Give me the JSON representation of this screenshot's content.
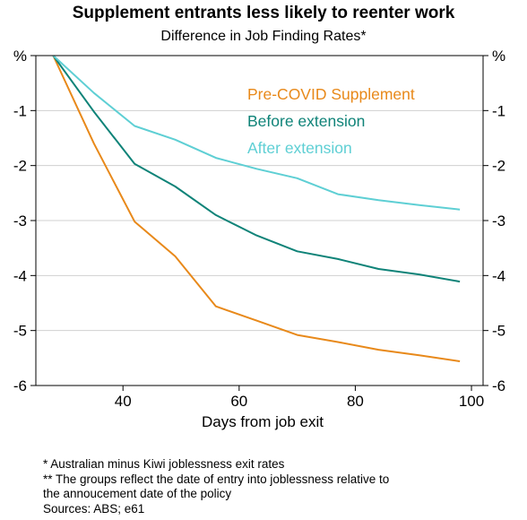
{
  "chart_data": {
    "type": "line",
    "title": "Supplement entrants less likely to reenter work",
    "subtitle": "Difference in Job Finding Rates*",
    "xlabel": "Days from job exit",
    "ylabel": "%",
    "ylabel_right": "%",
    "xlim": [
      25,
      102
    ],
    "ylim": [
      -6,
      0
    ],
    "xticks": [
      40,
      60,
      80,
      100
    ],
    "yticks": [
      0,
      -1,
      -2,
      -3,
      -4,
      -5,
      -6
    ],
    "ytick_labels": [
      "%",
      "-1",
      "-2",
      "-3",
      "-4",
      "-5",
      "-6"
    ],
    "grid": true,
    "legend_position": "top-right",
    "series": [
      {
        "name": "Pre-COVID Supplement",
        "color": "#E8891A",
        "x": [
          28,
          35,
          42,
          49,
          56,
          63,
          70,
          77,
          84,
          91,
          98
        ],
        "y": [
          0,
          -1.6,
          -3.02,
          -3.65,
          -4.56,
          -4.82,
          -5.08,
          -5.21,
          -5.35,
          -5.45,
          -5.56
        ]
      },
      {
        "name": "Before extension",
        "color": "#0F8378",
        "x": [
          28,
          35,
          42,
          49,
          56,
          63,
          70,
          77,
          84,
          91,
          98
        ],
        "y": [
          0,
          -1.02,
          -1.97,
          -2.38,
          -2.9,
          -3.27,
          -3.56,
          -3.7,
          -3.88,
          -3.98,
          -4.11
        ]
      },
      {
        "name": "After extension",
        "color": "#5ECFD4",
        "x": [
          28,
          35,
          42,
          49,
          56,
          63,
          70,
          77,
          84,
          91,
          98
        ],
        "y": [
          0,
          -0.68,
          -1.28,
          -1.53,
          -1.86,
          -2.06,
          -2.23,
          -2.52,
          -2.63,
          -2.72,
          -2.8
        ]
      }
    ]
  },
  "notes": [
    "* Australian minus Kiwi joblessness exit rates",
    "** The groups reflect the date of entry into joblessness relative to",
    "the annoucement date of the policy",
    "Sources: ABS; e61"
  ]
}
